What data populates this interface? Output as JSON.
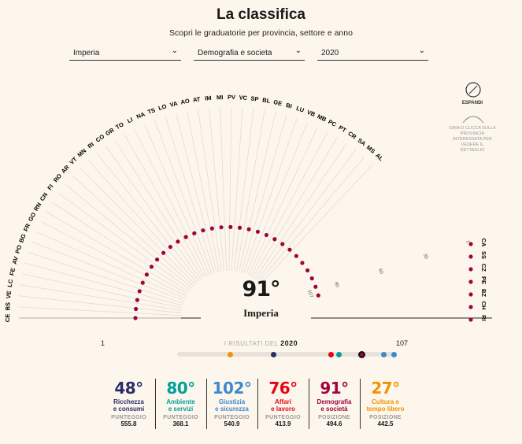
{
  "header": {
    "title": "La classifica",
    "subtitle": "Scopri le graduatorie per provincia, settore e anno"
  },
  "filters": {
    "province": "Imperia",
    "sector": "Demografia e societa",
    "year": "2020"
  },
  "expand": {
    "label": "ESPANDI",
    "hint": "GIRA O CLICCA SULLA PROVINCIA INTERESSATA PER VEDERE IL DETTAGLIO"
  },
  "province_labels": [
    "CE",
    "BS",
    "VE",
    "LC",
    "FE",
    "AV",
    "PO",
    "BG",
    "FR",
    "GO",
    "RN",
    "CN",
    "FI",
    "RO",
    "AR",
    "VT",
    "MN",
    "RI",
    "CO",
    "GR",
    "TO",
    "LI",
    "NA",
    "TS",
    "LO",
    "VA",
    "AO",
    "AT",
    "IM",
    "MI",
    "PV",
    "VC",
    "SP",
    "BL",
    "GE",
    "BI",
    "LU",
    "VB",
    "MB",
    "PC",
    "PT",
    "CR",
    "SA",
    "MS",
    "AL"
  ],
  "right_labels": [
    "CA",
    "SS",
    "CZ",
    "PE",
    "BZ",
    "CH",
    "RI"
  ],
  "scale_ticks": [
    "107",
    "90",
    "60",
    "30",
    "1"
  ],
  "selection": {
    "rank": "91°",
    "name": "Imperia"
  },
  "colors": {
    "accent": "#a0043f",
    "background": "#fdf6ec"
  },
  "timeline": {
    "min": "1",
    "max": "107",
    "label_prefix": "I RISULTATI DEL",
    "year": "2020",
    "markers": [
      {
        "category": "Cultura e tempo libero",
        "rank": 27,
        "color": "#f39200"
      },
      {
        "category": "Ricchezza e consumi",
        "rank": 48,
        "color": "#2b2c6b"
      },
      {
        "category": "Affari e lavoro",
        "rank": 76,
        "color": "#e30613"
      },
      {
        "category": "Ambiente e servizi",
        "rank": 80,
        "color": "#00a19a"
      },
      {
        "category": "Demografia e società",
        "rank": 91,
        "color": "#a0043f"
      },
      {
        "category": "Giustizia e sicurezza",
        "rank": 102,
        "color": "#3d89d0"
      }
    ]
  },
  "stats": [
    {
      "rank": "48°",
      "cat1": "Ricchezza",
      "cat2": "e consumi",
      "label": "PUNTEGGIO",
      "value": "555.8",
      "color": "#2b2c6b"
    },
    {
      "rank": "80°",
      "cat1": "Ambiente",
      "cat2": "e servizi",
      "label": "PUNTEGGIO",
      "value": "368.1",
      "color": "#00a19a"
    },
    {
      "rank": "102°",
      "cat1": "Giustizia",
      "cat2": "e sicurezza",
      "label": "PUNTEGGIO",
      "value": "540.9",
      "color": "#3d89d0"
    },
    {
      "rank": "76°",
      "cat1": "Affari",
      "cat2": "e lavoro",
      "label": "PUNTEGGIO",
      "value": "413.9",
      "color": "#e30613"
    },
    {
      "rank": "91°",
      "cat1": "Demografia",
      "cat2": "e società",
      "label": "POSIZIONE",
      "value": "494.6",
      "color": "#a0043f"
    },
    {
      "rank": "27°",
      "cat1": "Cultura e",
      "cat2": "tempo libero",
      "label": "POSIZIONE",
      "value": "442.5",
      "color": "#f39200"
    }
  ]
}
